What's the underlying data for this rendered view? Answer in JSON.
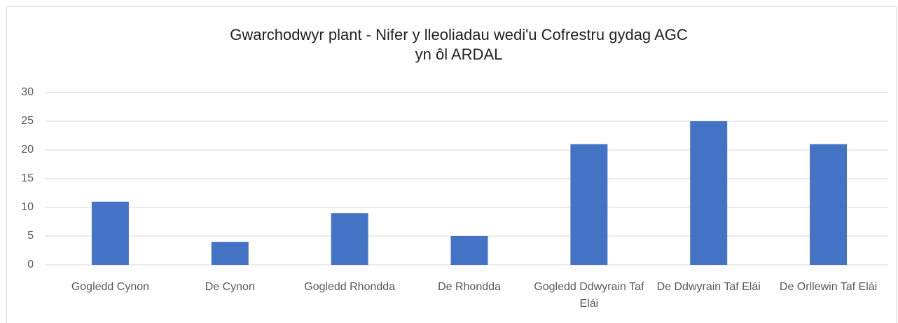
{
  "chart_data": {
    "type": "bar",
    "title": [
      "Gwarchodwyr plant - Nifer y lleoliadau wedi'u Cofrestru gydag AGC",
      "yn ôl ARDAL"
    ],
    "categories": [
      "Gogledd Cynon",
      "De Cynon",
      "Gogledd Rhondda",
      "De Rhondda",
      "Gogledd Ddwyrain Taf Elái",
      "De Ddwyrain Taf Elái",
      "De Orllewin Taf Elái"
    ],
    "values": [
      11,
      4,
      9,
      5,
      21,
      25,
      21
    ],
    "color": "#4472c4",
    "ylim": [
      0,
      30
    ],
    "yticks": [
      0,
      5,
      10,
      15,
      20,
      25,
      30
    ],
    "grid": true
  }
}
